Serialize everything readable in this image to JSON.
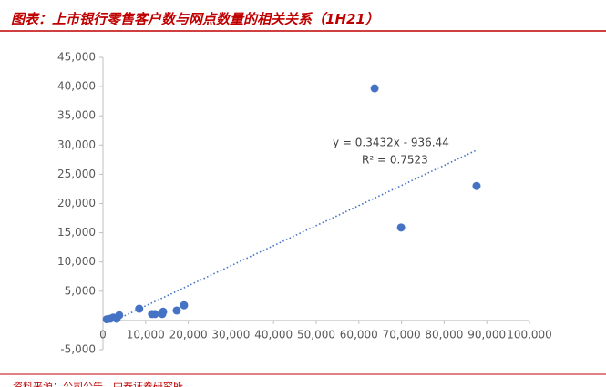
{
  "chart_data": {
    "type": "scatter",
    "title": "图表：上市银行零售客户数与网点数量的相关关系（1H21）",
    "source": "资料来源：公司公告，中泰证券研究所",
    "annotations": [
      "y = 0.3432x - 936.44",
      "R² = 0.7523"
    ],
    "color": "#4472c4",
    "x": [
      63700,
      69900,
      87600,
      8500,
      19000,
      17300,
      14100,
      13900,
      12200,
      11500,
      3800,
      3200,
      1700,
      900,
      2400
    ],
    "values": [
      39700,
      15900,
      23000,
      2000,
      2600,
      1700,
      1500,
      1100,
      1100,
      1100,
      900,
      300,
      300,
      200,
      500
    ],
    "trendline": {
      "color": "#4472c4",
      "x": [
        2728,
        87500
      ],
      "y": [
        0,
        29094
      ]
    },
    "xlim": [
      0,
      100000
    ],
    "xticks": [
      0,
      {
        "value": 10000,
        "label": "10,000"
      },
      {
        "value": 20000,
        "label": "20,000"
      },
      {
        "value": 30000,
        "label": "30,000"
      },
      {
        "value": 40000,
        "label": "40,000"
      },
      {
        "value": 50000,
        "label": "50,000"
      },
      {
        "value": 60000,
        "label": "60,000"
      },
      {
        "value": 70000,
        "label": "70,000"
      },
      {
        "value": 80000,
        "label": "80,000"
      },
      {
        "value": 90000,
        "label": "90,000"
      },
      {
        "value": 100000,
        "label": "100,000"
      }
    ],
    "ylim": [
      -5000,
      45000
    ],
    "yticks": [
      {
        "value": -5000,
        "label": "-5,000"
      },
      {
        "value": 5000,
        "label": "5,000"
      },
      {
        "value": 10000,
        "label": "10,000"
      },
      {
        "value": 15000,
        "label": "15,000"
      },
      {
        "value": 20000,
        "label": "20,000"
      },
      {
        "value": 25000,
        "label": "25,000"
      },
      {
        "value": 30000,
        "label": "30,000"
      },
      {
        "value": 35000,
        "label": "35,000"
      },
      {
        "value": 40000,
        "label": "40,000"
      },
      {
        "value": 45000,
        "label": "45,000"
      }
    ],
    "grid": false
  }
}
